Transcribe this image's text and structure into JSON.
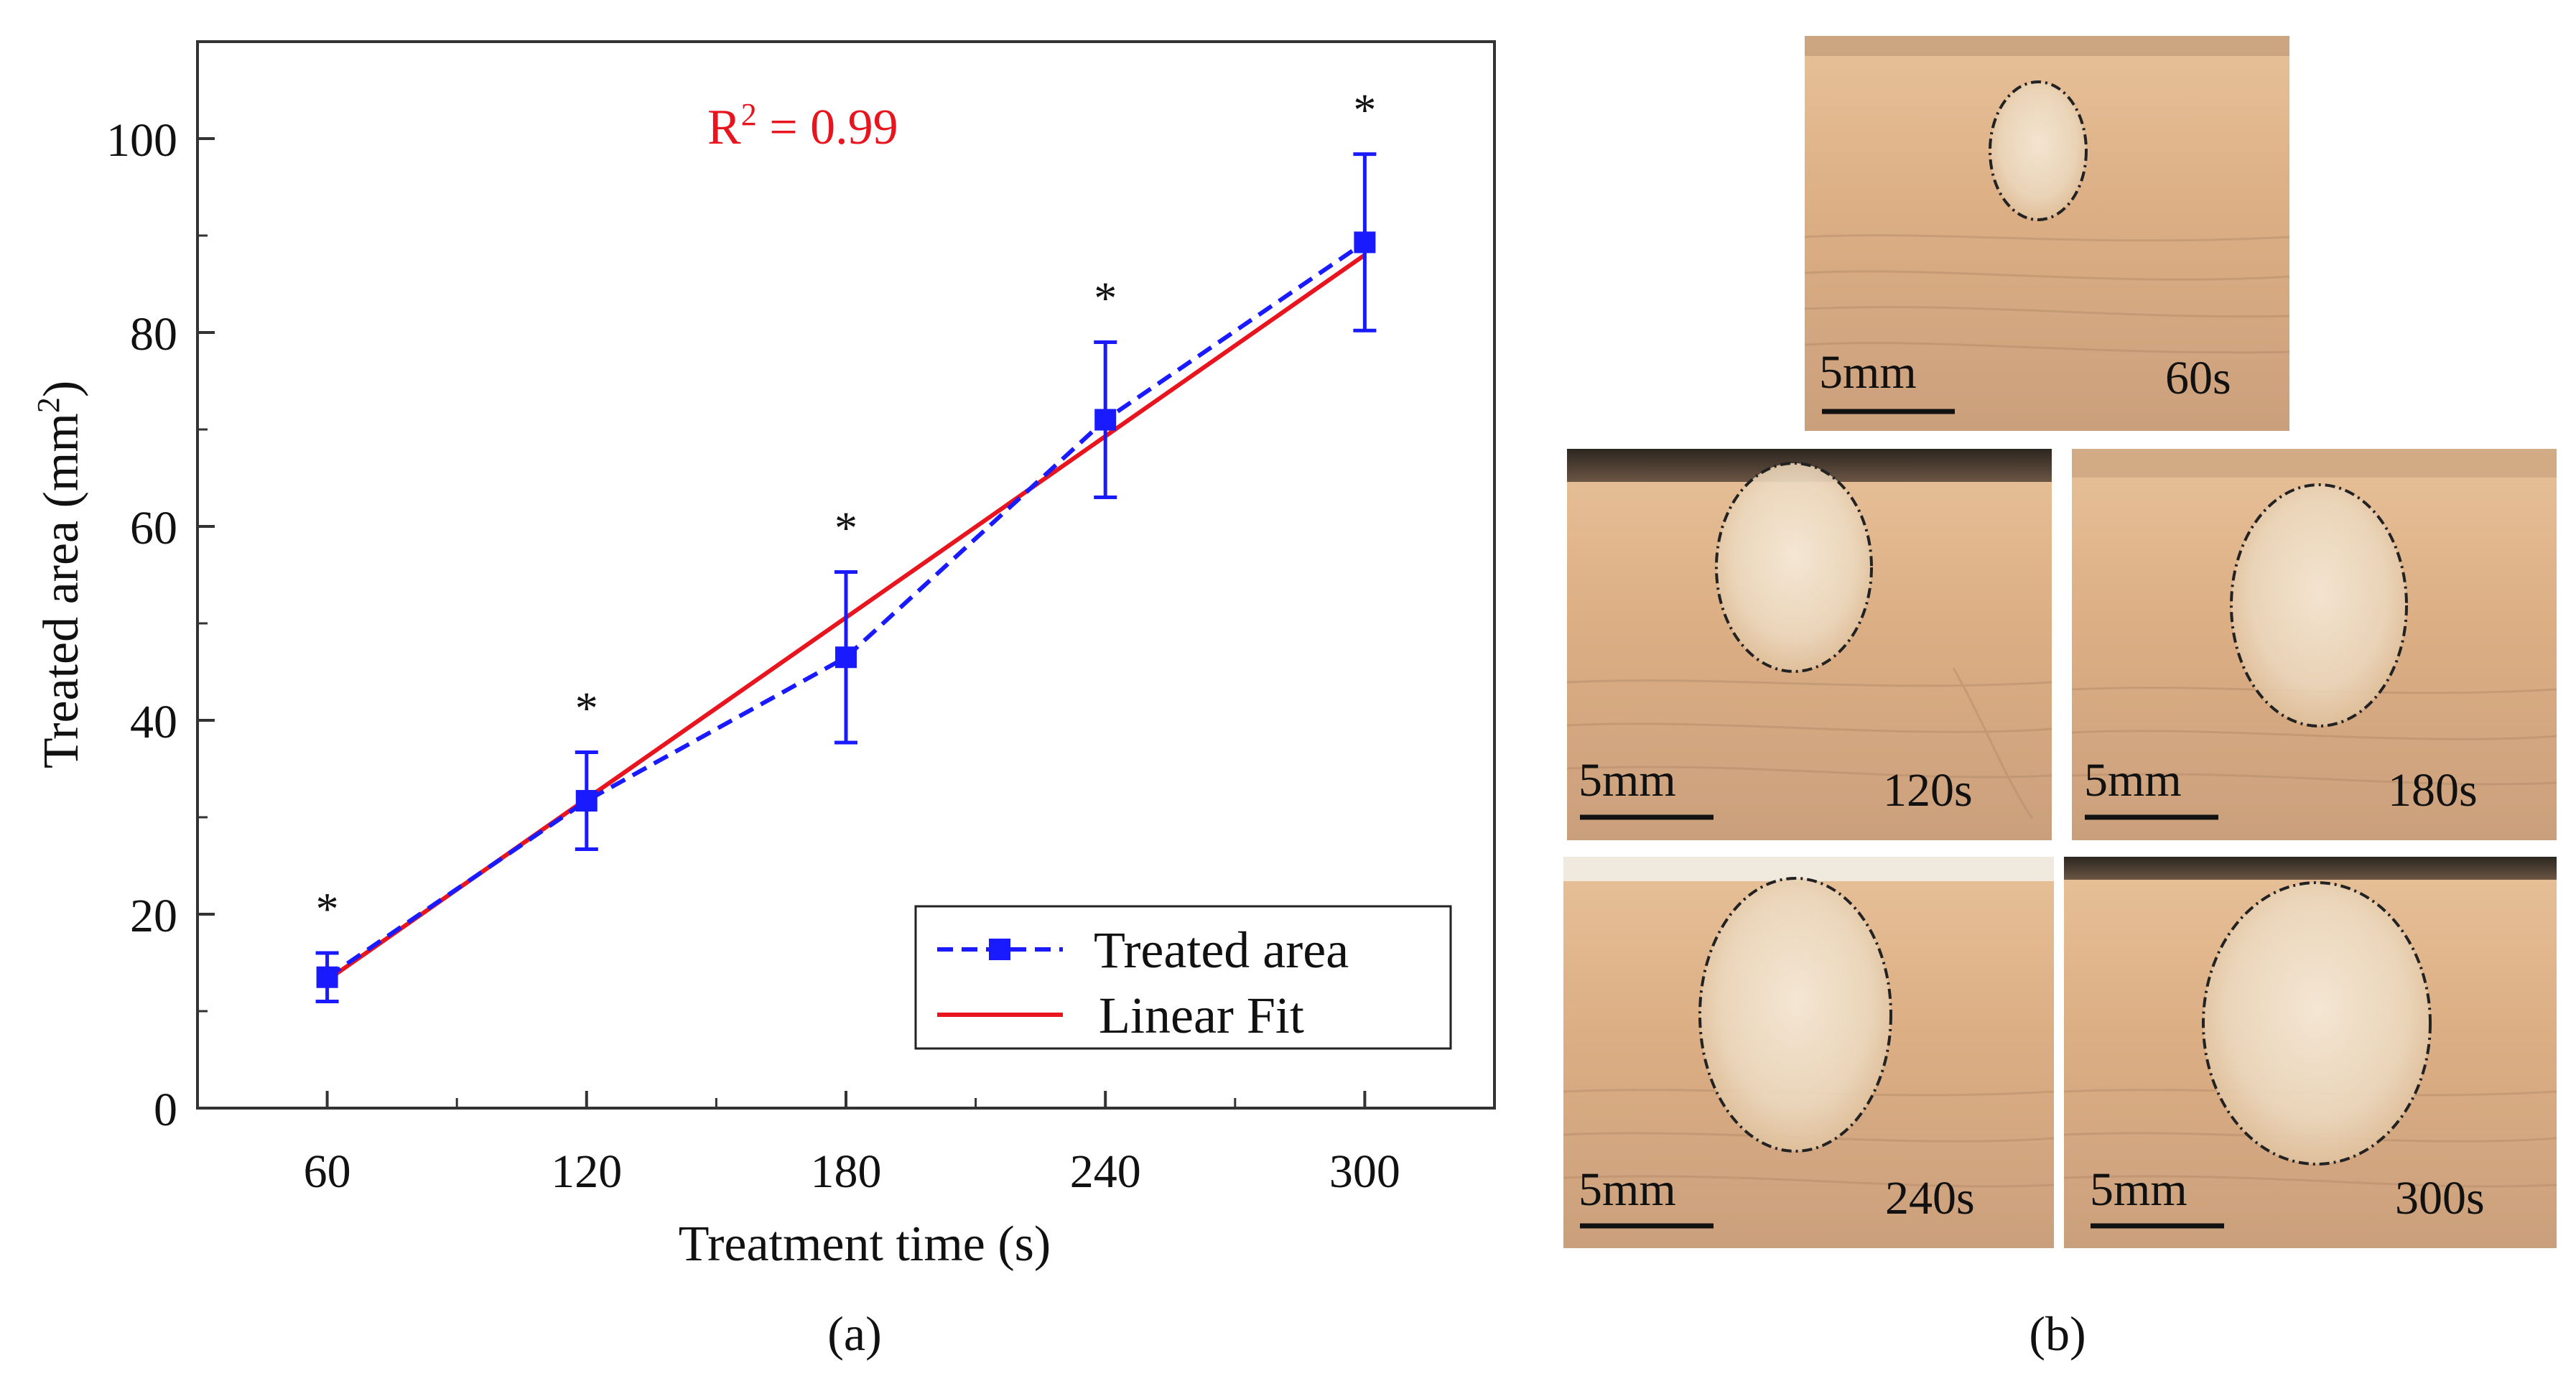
{
  "figure": {
    "panel_a_caption": "(a)",
    "panel_b_caption": "(b)"
  },
  "chart_data": {
    "type": "line",
    "xlabel": "Treatment time (s)",
    "ylabel": "Treated area (mm²)",
    "ylabel_main": "Treated area (mm",
    "ylabel_sup": "2",
    "ylabel_end": ")",
    "xlim": [
      30,
      330
    ],
    "ylim": [
      0,
      110
    ],
    "x_ticks": [
      60,
      120,
      180,
      240,
      300
    ],
    "y_ticks": [
      0,
      20,
      40,
      60,
      80,
      100
    ],
    "grid": false,
    "legend_position": "bottom-right",
    "series": [
      {
        "name": "Treated area",
        "style": "dashed-square-markers",
        "color": "#1a1aff",
        "x": [
          60,
          120,
          180,
          240,
          300
        ],
        "y": [
          13.5,
          31.7,
          46.5,
          71.0,
          89.3
        ],
        "error": [
          2.5,
          5.0,
          8.8,
          8.0,
          9.1
        ],
        "significance": [
          "*",
          "*",
          "*",
          "*",
          "*"
        ]
      },
      {
        "name": "Linear Fit",
        "style": "solid",
        "color": "#e8141e",
        "x": [
          60,
          300
        ],
        "y": [
          13.2,
          88.0
        ]
      }
    ],
    "annotation": {
      "text_main": "R",
      "text_sup": "2",
      "text_rest": " = 0.99",
      "color": "#e8141e"
    }
  },
  "photos": [
    {
      "time_label": "60s",
      "scale_label": "5mm"
    },
    {
      "time_label": "120s",
      "scale_label": "5mm"
    },
    {
      "time_label": "180s",
      "scale_label": "5mm"
    },
    {
      "time_label": "240s",
      "scale_label": "5mm"
    },
    {
      "time_label": "300s",
      "scale_label": "5mm"
    }
  ]
}
